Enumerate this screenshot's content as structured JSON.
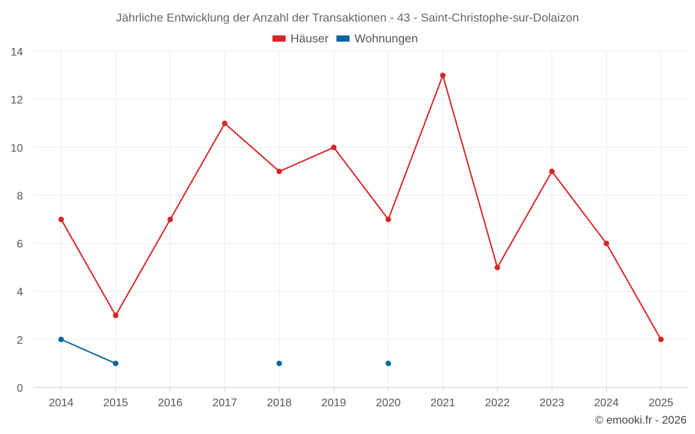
{
  "chart_data": {
    "type": "line",
    "title": "Jährliche Entwicklung der Anzahl der Transaktionen - 43 - Saint-Christophe-sur-Dolaizon",
    "categories": [
      "2014",
      "2015",
      "2016",
      "2017",
      "2018",
      "2019",
      "2020",
      "2021",
      "2022",
      "2023",
      "2024",
      "2025"
    ],
    "series": [
      {
        "name": "Häuser",
        "color": "#d62728",
        "values": [
          7,
          3,
          7,
          11,
          9,
          10,
          7,
          13,
          5,
          9,
          6,
          2
        ]
      },
      {
        "name": "Wohnungen",
        "color": "#0a66a0",
        "values": [
          2,
          1,
          null,
          null,
          1,
          null,
          1,
          null,
          null,
          null,
          null,
          null
        ]
      }
    ],
    "yticks": [
      "0",
      "2",
      "4",
      "6",
      "8",
      "10",
      "12",
      "14"
    ],
    "ylim": [
      0,
      14
    ],
    "xlabel": "",
    "ylabel": "",
    "legend_position": "top-center",
    "grid": true
  },
  "credit": "© emooki.fr - 2026"
}
